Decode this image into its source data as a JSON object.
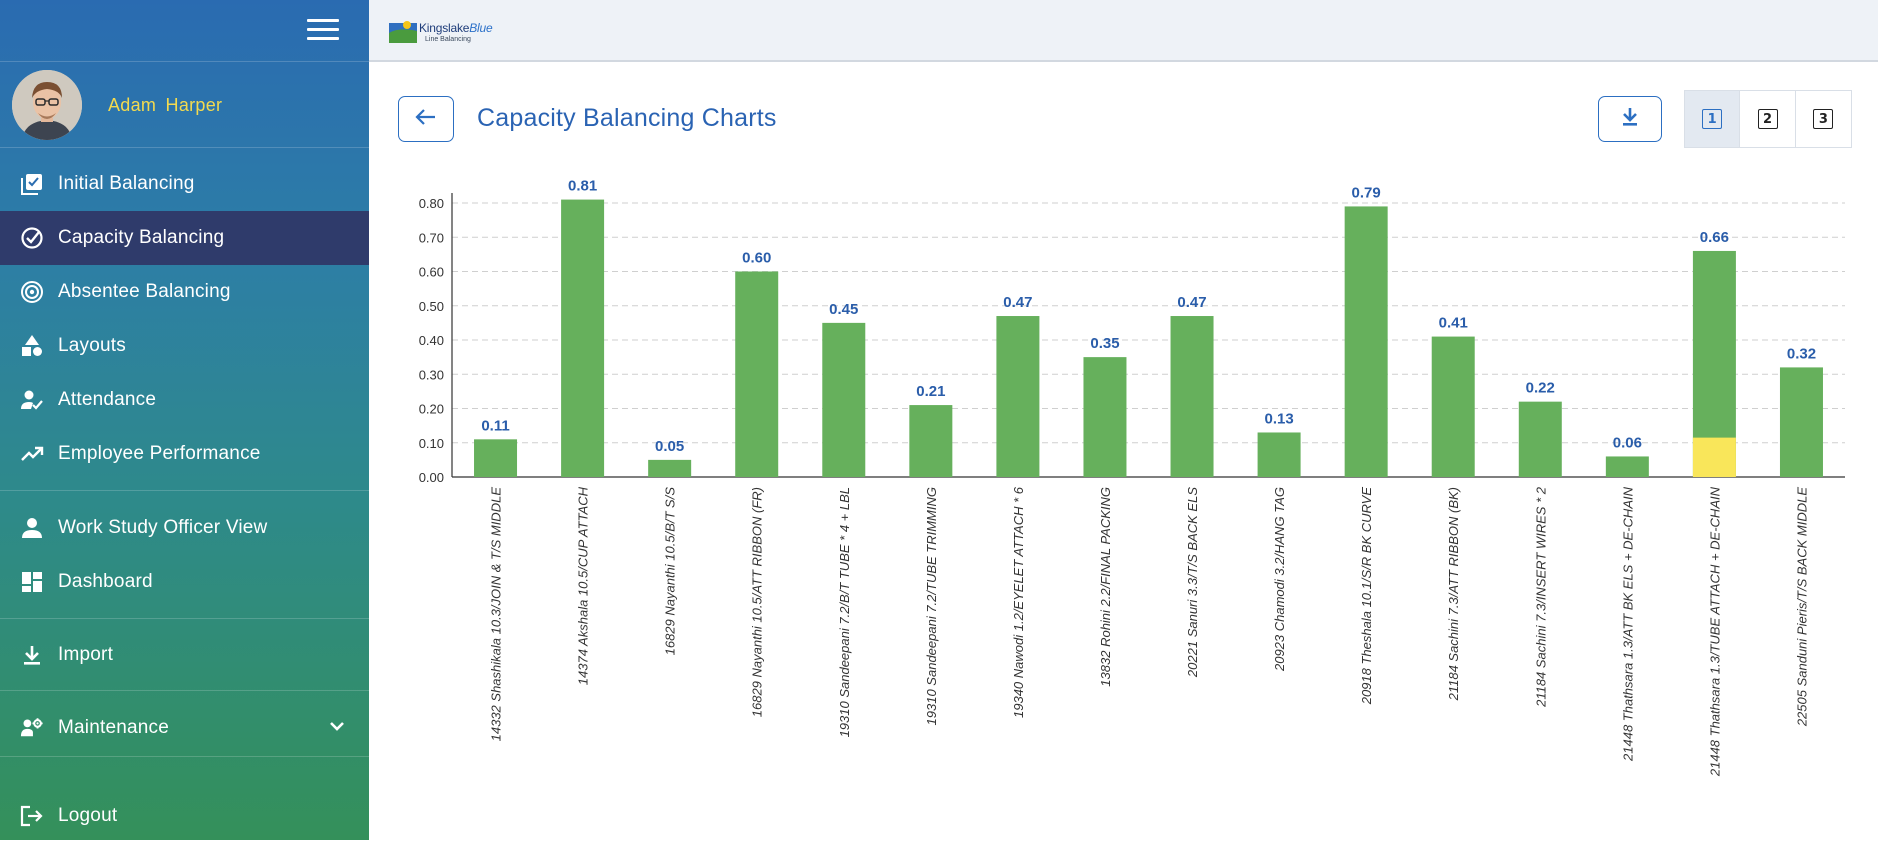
{
  "sidebar": {
    "user_name": "Adam  Harper",
    "items": [
      {
        "label": "Initial Balancing",
        "icon": "checklist-icon"
      },
      {
        "label": "Capacity Balancing",
        "icon": "check-circle-icon"
      },
      {
        "label": "Absentee Balancing",
        "icon": "target-icon"
      },
      {
        "label": "Layouts",
        "icon": "shapes-icon"
      },
      {
        "label": "Attendance",
        "icon": "person-check-icon"
      },
      {
        "label": "Employee Performance",
        "icon": "trending-up-icon"
      },
      {
        "label": "Work Study Officer View",
        "icon": "person-icon"
      },
      {
        "label": "Dashboard",
        "icon": "dashboard-icon"
      },
      {
        "label": "Import",
        "icon": "download-icon"
      },
      {
        "label": "Maintenance",
        "icon": "people-gear-icon"
      },
      {
        "label": "Logout",
        "icon": "logout-icon"
      }
    ]
  },
  "topbar": {
    "logo_main": "Kingslake",
    "logo_accent": "Blue",
    "logo_sub": "Line Balancing"
  },
  "header": {
    "title": "Capacity Balancing Charts",
    "view_options": [
      "1",
      "2",
      "3"
    ],
    "active_view": "1"
  },
  "colors": {
    "bar": "#66b05c",
    "bar_highlight": "#f9e65a",
    "value_label": "#2a5daa",
    "active_nav": "#2f3b6b",
    "user_name": "#f3da4f"
  },
  "chart_data": {
    "type": "bar",
    "title": "",
    "xlabel": "",
    "ylabel": "",
    "ylim": [
      0,
      0.85
    ],
    "yticks": [
      "0.00",
      "0.10",
      "0.20",
      "0.30",
      "0.40",
      "0.50",
      "0.60",
      "0.70",
      "0.80"
    ],
    "categories": [
      "14332 Shashikala 10.3/JOIN & T/S MIDDLE",
      "14374 Akshala 10.5/CUP ATTACH",
      "16829 Nayanthi 10.5/B/T S/S",
      "16829 Nayanthi 10.5/ATT RIBBON (FR)",
      "19310 Sandeepani 7.2/B/T TUBE * 4 + LBL",
      "19310 Sandeepani 7.2/TUBE TRIMMING",
      "19340 Nawodi 1.2/EYELET ATTACH * 6",
      "13832 Rohini 2.2/FINAL PACKING",
      "20221 Sanuri 3.3/T/S BACK ELS",
      "20923 Chamodi 3.2/HANG TAG",
      "20918 Theshala 10.1/S/R BK CURVE",
      "21184 Sachini 7.3/ATT RIBBON (BK)",
      "21184 Sachini 7.3/INSERT WIRES * 2",
      "21448 Thathsara 1.3/ATT BK ELS + DE-CHAIN",
      "21448 Thathsara 1.3/TUBE ATTACH + DE-CHAIN",
      "22505 Sanduni Pieris/T/S BACK MIDDLE"
    ],
    "values": [
      0.11,
      0.81,
      0.05,
      0.6,
      0.45,
      0.21,
      0.47,
      0.35,
      0.47,
      0.13,
      0.79,
      0.41,
      0.22,
      0.06,
      0.66,
      0.32
    ],
    "labels": [
      "0.11",
      "0.81",
      "0.05",
      "0.60",
      "0.45",
      "0.21",
      "0.47",
      "0.35",
      "0.47",
      "0.13",
      "0.79",
      "0.41",
      "0.22",
      "0.06",
      "0.66",
      "0.32"
    ],
    "highlight_segments": [
      {
        "index": 14,
        "value": 0.115
      }
    ]
  }
}
